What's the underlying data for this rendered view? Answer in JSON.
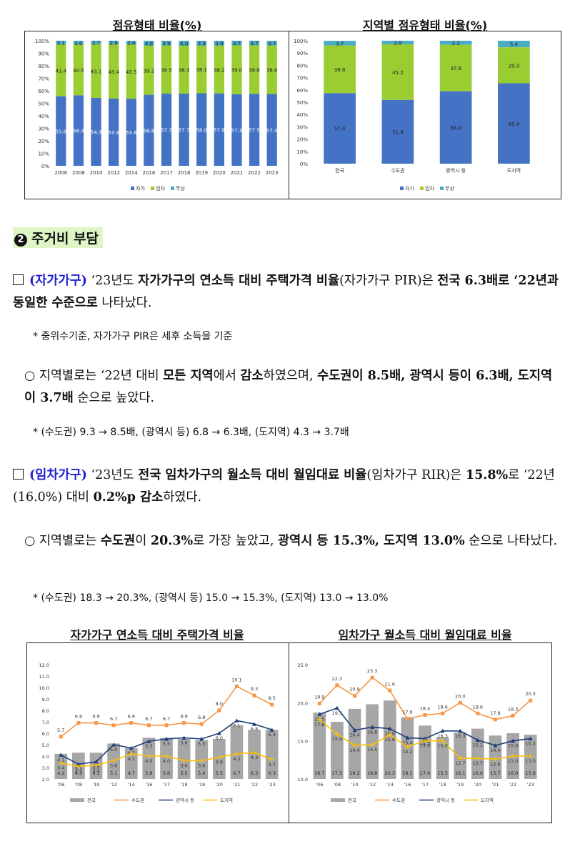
{
  "top_left_title": "점유형태 비율(%)",
  "top_right_title": "지역별 점유형태 비율(%)",
  "section": {
    "number": "2",
    "title": "주거비 부담"
  },
  "para1": {
    "tag": "(자가가구)",
    "t1": " ‘23년도 ",
    "t2": "자가가구의 연소득 대비 주택가격 비율",
    "t3": "(자가가구 PIR)은 ",
    "t4": "전국 6.3배로 ‘22년과 동일한 수준으로",
    "t5": " 나타났다."
  },
  "note1": "* 중위수기준, 자가가구 PIR은 세후 소득을 기준",
  "para2": {
    "t1": "○ 지역별로는 ‘22년 대비 ",
    "t2": "모든 지역",
    "t3": "에서 ",
    "t4": "감소",
    "t5": "하였으며, ",
    "t6": "수도권이 8.5배, 광역시 등이 6.3배, 도지역이 3.7배",
    "t7": " 순으로 높았다."
  },
  "note2": "* (수도권) 9.3 → 8.5배, (광역시 등) 6.8 → 6.3배, (도지역) 4.3 → 3.7배",
  "para3": {
    "tag": "(임차가구)",
    "t1": " ‘23년도 ",
    "t2": "전국 임차가구의 월소득 대비 월임대료 비율",
    "t3": "(임차가구 RIR)은 ",
    "t4": "15.8%",
    "t5": "로 ‘22년(16.0%) 대비 ",
    "t6": "0.2%p 감소",
    "t7": "하였다."
  },
  "para4": {
    "t1": "○ 지역별로는 ",
    "t2": "수도권",
    "t3": "이 ",
    "t4": "20.3%",
    "t5": "로 가장 높았고, ",
    "t6": "광역시 등 15.3%, 도지역 13.0%",
    "t7": " 순으로 나타났다."
  },
  "note3": "* (수도권) 18.3 → 20.3%, (광역시 등) 15.0 → 15.3%, (도지역) 13.0 → 13.0%",
  "bottom_left_title": "자가가구 연소득 대비 주택가격 비율",
  "bottom_right_title": "임차가구 월소득 대비 월임대료 비율",
  "colors": {
    "blue": "#4472c4",
    "green": "#9acd32",
    "cyan": "#4bacc6",
    "gray": "#a6a6a6",
    "orange": "#f79646",
    "navy": "#1f3e7a",
    "yellow": "#ffc000",
    "highlight": "#dff5c6"
  },
  "chart_data": [
    {
      "type": "bar",
      "title": "점유형태 비율(%)",
      "stacked": true,
      "categories": [
        "2006",
        "2008",
        "2010",
        "2012",
        "2014",
        "2016",
        "2017",
        "2018",
        "2019",
        "2020",
        "2021",
        "2022",
        "2023"
      ],
      "series": [
        {
          "name": "자가",
          "values": [
            55.6,
            56.4,
            54.3,
            53.8,
            53.6,
            56.8,
            57.7,
            57.7,
            58.0,
            57.9,
            57.3,
            57.5,
            57.4
          ]
        },
        {
          "name": "임차",
          "values": [
            41.4,
            40.5,
            43.1,
            43.4,
            43.5,
            39.2,
            38.5,
            38.3,
            38.1,
            38.2,
            39.0,
            38.8,
            38.8
          ]
        },
        {
          "name": "무상",
          "values": [
            3.1,
            3.0,
            2.7,
            2.8,
            2.8,
            4.0,
            3.9,
            4.0,
            3.9,
            3.9,
            3.7,
            3.7,
            3.7
          ]
        }
      ],
      "yticks": [
        "0%",
        "10%",
        "20%",
        "30%",
        "40%",
        "50%",
        "60%",
        "70%",
        "80%",
        "90%",
        "100%"
      ],
      "legend": "bottom"
    },
    {
      "type": "bar",
      "title": "지역별 점유형태 비율(%)",
      "stacked": true,
      "categories": [
        "전국",
        "수도권",
        "광역시 등",
        "도지역"
      ],
      "series": [
        {
          "name": "자가",
          "values": [
            57.4,
            51.9,
            58.9,
            65.4
          ]
        },
        {
          "name": "임차",
          "values": [
            38.8,
            45.2,
            37.8,
            29.3
          ]
        },
        {
          "name": "무상",
          "values": [
            3.7,
            2.9,
            3.3,
            5.4
          ]
        }
      ],
      "yticks": [
        "0%",
        "10%",
        "20%",
        "30%",
        "40%",
        "50%",
        "60%",
        "70%",
        "80%",
        "90%",
        "100%"
      ],
      "legend": "bottom"
    },
    {
      "type": "bar+line",
      "title": "자가가구 연소득 대비 주택가격 비율",
      "categories": [
        "'06",
        "'08",
        "'10",
        "'12",
        "'14",
        "'16",
        "'17",
        "'18",
        "'19",
        "'20",
        "'21",
        "'22",
        "'23"
      ],
      "ylim": [
        2.0,
        12.0
      ],
      "yticks": [
        "2.0",
        "3.0",
        "4.0",
        "5.0",
        "6.0",
        "7.0",
        "8.0",
        "9.0",
        "10.0",
        "11.0",
        "12.0"
      ],
      "series": [
        {
          "name": "전국",
          "kind": "bar",
          "values": [
            4.2,
            4.3,
            4.3,
            5.1,
            4.7,
            5.6,
            5.6,
            5.5,
            5.4,
            5.5,
            6.7,
            6.3,
            6.3
          ]
        },
        {
          "name": "수도권",
          "kind": "line",
          "values": [
            5.7,
            6.9,
            6.9,
            6.7,
            6.9,
            6.7,
            6.7,
            6.9,
            6.8,
            8.0,
            10.1,
            9.3,
            8.5
          ]
        },
        {
          "name": "광역시 등",
          "kind": "line",
          "values": [
            4.1,
            3.3,
            3.5,
            5.0,
            4.7,
            5.3,
            5.5,
            5.6,
            5.5,
            6.0,
            7.1,
            6.8,
            6.3
          ]
        },
        {
          "name": "도지역",
          "kind": "line",
          "values": [
            3.4,
            3.1,
            3.2,
            3.6,
            4.2,
            4.0,
            4.0,
            3.6,
            3.6,
            3.9,
            4.2,
            4.3,
            3.7
          ]
        }
      ],
      "legend": "bottom"
    },
    {
      "type": "bar+line",
      "title": "임차가구 월소득 대비 월임대료 비율",
      "categories": [
        "'06",
        "'08",
        "'10",
        "'12",
        "'14",
        "'16",
        "'17",
        "'18",
        "'19",
        "'20",
        "'21",
        "'22",
        "'23"
      ],
      "ylim": [
        10.0,
        25.0
      ],
      "yticks": [
        "10.0",
        "15.0",
        "20.0",
        "25.0"
      ],
      "series": [
        {
          "name": "전국",
          "kind": "bar",
          "values": [
            18.7,
            17.5,
            19.2,
            19.8,
            20.3,
            18.1,
            17.0,
            15.5,
            16.1,
            16.6,
            15.7,
            16.0,
            15.8
          ]
        },
        {
          "name": "수도권",
          "kind": "line",
          "values": [
            19.9,
            22.3,
            20.9,
            23.3,
            21.6,
            17.9,
            18.4,
            18.6,
            20.0,
            18.6,
            17.8,
            18.3,
            20.3
          ]
        },
        {
          "name": "광역시 등",
          "kind": "line",
          "values": [
            18.5,
            19.3,
            16.4,
            16.8,
            16.6,
            15.4,
            15.3,
            16.3,
            16.3,
            15.1,
            14.4,
            15.0,
            15.3
          ]
        },
        {
          "name": "도지역",
          "kind": "line",
          "values": [
            17.8,
            15.9,
            14.4,
            14.5,
            15.8,
            14.2,
            15.0,
            15.0,
            12.7,
            12.7,
            12.6,
            13.0,
            13.0
          ]
        }
      ],
      "legend": "bottom"
    }
  ]
}
